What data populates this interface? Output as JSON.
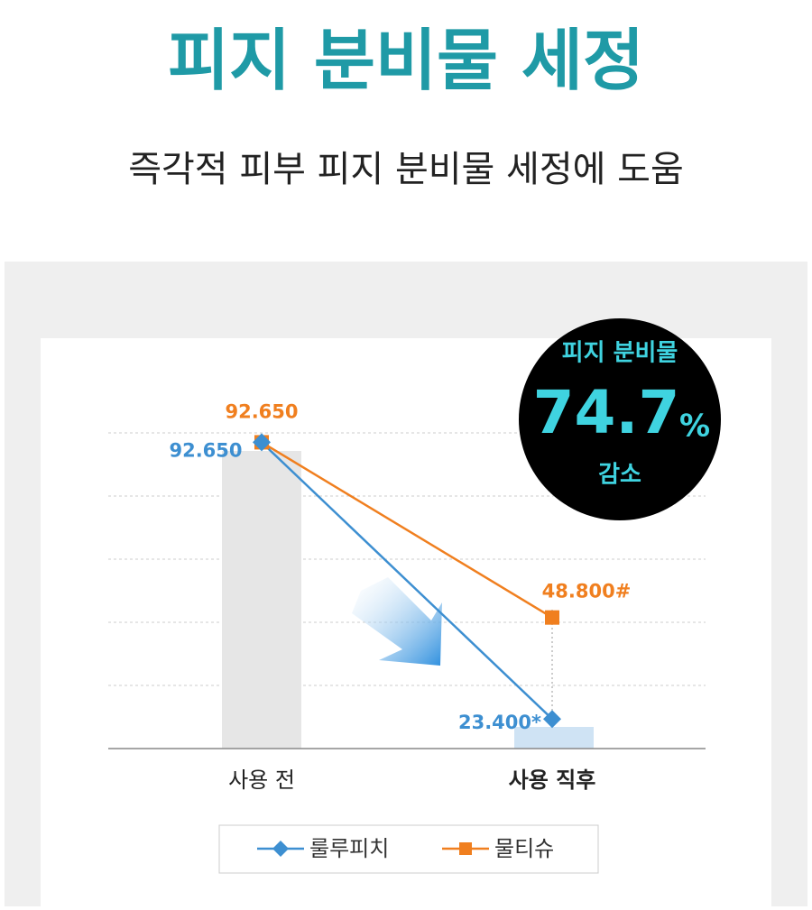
{
  "chart_data": {
    "type": "line",
    "title": "피지 분비물 세정",
    "subtitle": "즉각적 피부 피지 분비물 세정에 도움",
    "badge": {
      "top": "피지 분비물",
      "value": "74.7",
      "unit": "%",
      "bottom": "감소"
    },
    "categories": [
      "사용 전",
      "사용 직후"
    ],
    "series": [
      {
        "name": "룰루피치",
        "color": "#3d8fd1",
        "marker": "diamond",
        "values": [
          92.65,
          23.4
        ],
        "value_labels": [
          "92.650",
          "23.400*"
        ]
      },
      {
        "name": "물티슈",
        "color": "#f07f1f",
        "marker": "square",
        "values": [
          92.65,
          48.8
        ],
        "value_labels": [
          "92.650",
          "48.800#"
        ]
      }
    ],
    "ylim": [
      16,
      95
    ],
    "yticks": [
      16,
      31.8,
      47.6,
      63.4,
      79.2,
      95
    ],
    "grid": true
  }
}
